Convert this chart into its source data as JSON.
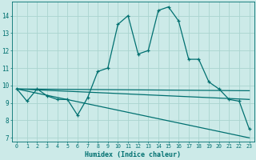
{
  "xlabel": "Humidex (Indice chaleur)",
  "background_color": "#cceae8",
  "grid_color": "#aad4d0",
  "line_color": "#007070",
  "xlim": [
    -0.5,
    23.5
  ],
  "ylim": [
    6.8,
    14.8
  ],
  "yticks": [
    7,
    8,
    9,
    10,
    11,
    12,
    13,
    14
  ],
  "xticks": [
    0,
    1,
    2,
    3,
    4,
    5,
    6,
    7,
    8,
    9,
    10,
    11,
    12,
    13,
    14,
    15,
    16,
    17,
    18,
    19,
    20,
    21,
    22,
    23
  ],
  "line1_x": [
    0,
    1,
    2,
    3,
    4,
    5,
    6,
    7,
    8,
    9,
    10,
    11,
    12,
    13,
    14,
    15,
    16,
    17,
    18,
    19,
    20,
    21,
    22,
    23
  ],
  "line1_y": [
    9.8,
    9.1,
    9.8,
    9.4,
    9.2,
    9.2,
    8.3,
    9.3,
    10.8,
    11.0,
    13.5,
    14.0,
    11.8,
    12.0,
    14.3,
    14.5,
    13.7,
    11.5,
    11.5,
    10.2,
    9.8,
    9.2,
    9.1,
    7.5
  ],
  "line2_x": [
    0,
    23
  ],
  "line2_y": [
    9.8,
    9.7
  ],
  "line3_x": [
    0,
    23
  ],
  "line3_y": [
    9.8,
    9.2
  ],
  "line4_x": [
    0,
    23
  ],
  "line4_y": [
    9.8,
    7.0
  ]
}
